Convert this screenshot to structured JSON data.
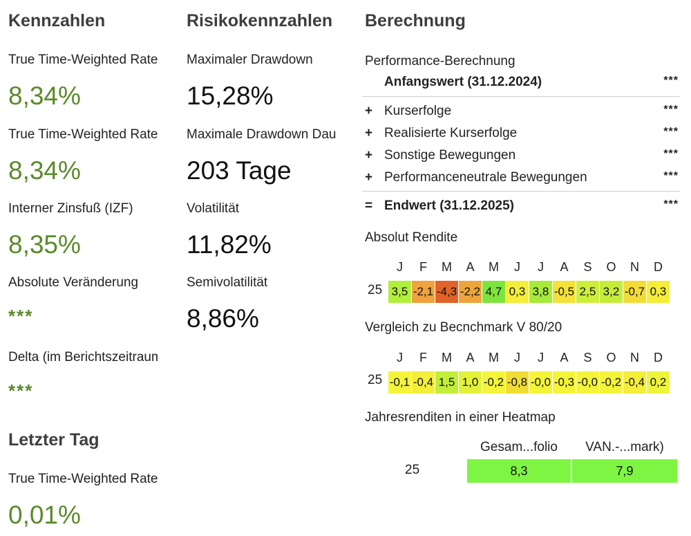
{
  "kennzahlen": {
    "title": "Kennzahlen",
    "metrics": [
      {
        "label": "True Time-Weighted Rate of Return",
        "value": "8,34%"
      },
      {
        "label": "True Time-Weighted Rate of Return",
        "value": "8,34%"
      },
      {
        "label": "Interner Zinsfuß (IZF)",
        "value": "8,35%"
      },
      {
        "label": "Absolute Veränderung",
        "value": "***"
      },
      {
        "label": "Delta (im Berichtszeitraum)",
        "value": "***"
      }
    ]
  },
  "letzter_tag": {
    "title": "Letzter Tag",
    "metrics": [
      {
        "label": "True Time-Weighted Rate of Return",
        "value": "0,01%"
      }
    ]
  },
  "risiko": {
    "title": "Risikokennzahlen",
    "metrics": [
      {
        "label": "Maximaler Drawdown",
        "value": "15,28%"
      },
      {
        "label": "Maximale Drawdown Dauer",
        "value": "203 Tage"
      },
      {
        "label": "Volatilität",
        "value": "11,82%"
      },
      {
        "label": "Semivolatilität",
        "value": "8,86%"
      }
    ]
  },
  "berechnung": {
    "title": "Berechnung",
    "subtitle": "Performance-Berechnung",
    "rows": [
      {
        "sign": "",
        "name": "Anfangswert (31.12.2024)",
        "value": "***"
      },
      {
        "sign": "+",
        "name": "Kurserfolge",
        "value": "***"
      },
      {
        "sign": "+",
        "name": "Realisierte Kurserfolge",
        "value": "***"
      },
      {
        "sign": "+",
        "name": "Sonstige Bewegungen",
        "value": "***"
      },
      {
        "sign": "+",
        "name": "Performanceneutrale Bewegungen",
        "value": "***"
      },
      {
        "sign": "=",
        "name": "Endwert (31.12.2025)",
        "value": "***"
      }
    ]
  },
  "absolut_rendite": {
    "title": "Absolut Rendite",
    "months": [
      "J",
      "F",
      "M",
      "A",
      "M",
      "J",
      "J",
      "A",
      "S",
      "O",
      "N",
      "D"
    ],
    "year": "25",
    "values": [
      "3,5",
      "-2,1",
      "-4,3",
      "-2,2",
      "4,7",
      "0,3",
      "3,8",
      "-0,5",
      "2,5",
      "3,2",
      "-0,7",
      "0,3"
    ],
    "colors": [
      "#b2ee3c",
      "#f0a23e",
      "#e0632a",
      "#eda43a",
      "#7fe33e",
      "#f4ee3a",
      "#a6ea3c",
      "#f4e13a",
      "#cdee3a",
      "#c6ec3a",
      "#f4dc38",
      "#f4ee3a"
    ]
  },
  "vergleich": {
    "title": "Vergleich zu Becnchmark V 80/20",
    "months": [
      "J",
      "F",
      "M",
      "A",
      "M",
      "J",
      "J",
      "A",
      "S",
      "O",
      "N",
      "D"
    ],
    "year": "25",
    "values": [
      "-0,1",
      "-0,4",
      "1,5",
      "1,0",
      "-0,2",
      "-0,8",
      "-0,0",
      "-0,3",
      "-0,0",
      "-0,2",
      "-0,4",
      "0,2"
    ],
    "colors": [
      "#f4f43a",
      "#f4ee3a",
      "#c2ee3a",
      "#e2f23a",
      "#f4f43a",
      "#f0dc36",
      "#f4f43a",
      "#f4f43a",
      "#f4f43a",
      "#f4f43a",
      "#f4ee3a",
      "#eef43a"
    ]
  },
  "jahresrenditen": {
    "title": "Jahresrenditen in einer Heatmap",
    "headers": [
      "Gesam...folio",
      "VAN.-...mark)"
    ],
    "year": "25",
    "values": [
      "8,3",
      "7,9"
    ],
    "color": "#7ef542"
  }
}
